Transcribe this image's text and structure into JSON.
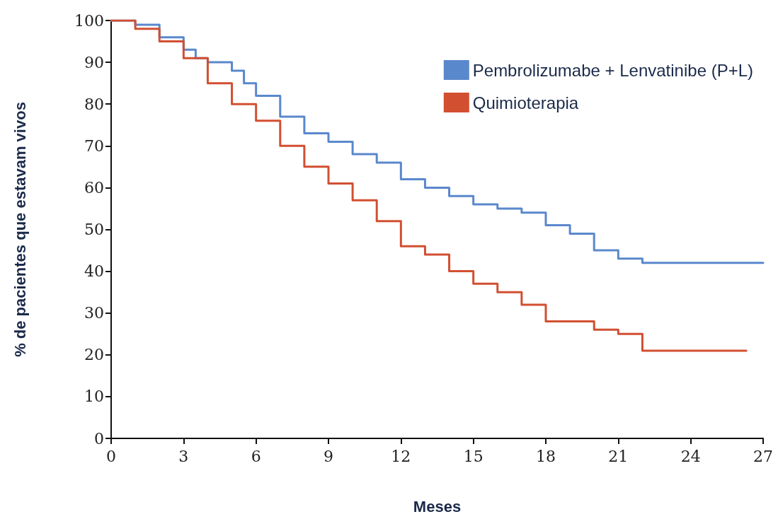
{
  "chart_data": {
    "type": "step",
    "xlabel": "Meses",
    "ylabel": "% de pacientes que estavam vivos",
    "xlim": [
      0,
      27
    ],
    "xticks": [
      0,
      3,
      6,
      9,
      12,
      15,
      18,
      21,
      24,
      27
    ],
    "ylim": [
      0,
      100
    ],
    "yticks": [
      0,
      10,
      20,
      30,
      40,
      50,
      60,
      70,
      80,
      90,
      100
    ],
    "grid": false,
    "legend": "top right",
    "line_style": "solid",
    "series": [
      {
        "name": "Pembrolizumabe + Lenvatinibe (P+L)",
        "color": "#5a88cc",
        "x": [
          0,
          1,
          2,
          3,
          3.5,
          4,
          5,
          5.5,
          6,
          7,
          8,
          9,
          10,
          11,
          12,
          13,
          14,
          15,
          16,
          17,
          18,
          19,
          20,
          21,
          22,
          27
        ],
        "values": [
          100,
          99,
          96,
          93,
          91,
          90,
          88,
          85,
          82,
          77,
          73,
          71,
          68,
          66,
          62,
          60,
          58,
          56,
          55,
          54,
          51,
          49,
          45,
          43,
          42,
          42
        ]
      },
      {
        "name": "Quimioterapia",
        "color": "#d24f31",
        "x": [
          0,
          1,
          2,
          3,
          4,
          5,
          6,
          7,
          8,
          9,
          10,
          11,
          12,
          13,
          14,
          15,
          16,
          17,
          18,
          19,
          20,
          21,
          22,
          26.3
        ],
        "values": [
          100,
          98,
          95,
          91,
          85,
          80,
          76,
          70,
          65,
          61,
          57,
          52,
          46,
          44,
          40,
          37,
          35,
          32,
          28,
          28,
          26,
          25,
          21,
          21
        ]
      }
    ]
  }
}
